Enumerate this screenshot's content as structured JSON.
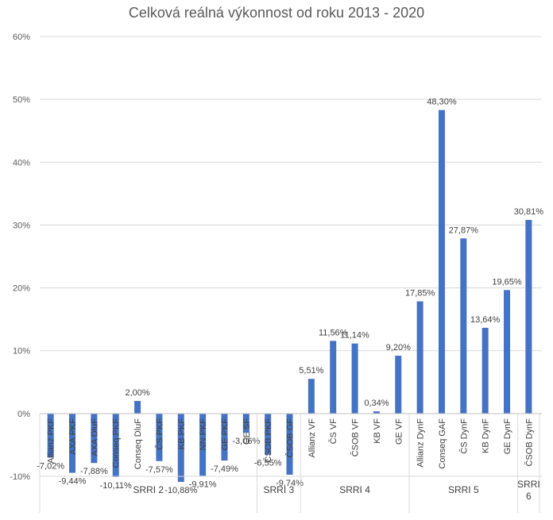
{
  "chart_data": {
    "type": "bar",
    "title": "Celková reálná výkonnost od roku 2013 - 2020",
    "xlabel": "",
    "ylabel": "",
    "ylim": [
      -10,
      60
    ],
    "y_ticks": [
      -10,
      0,
      10,
      20,
      30,
      40,
      50,
      60
    ],
    "y_tick_labels": [
      "-10%",
      "0%",
      "10%",
      "20%",
      "30%",
      "40%",
      "50%",
      "60%"
    ],
    "grid": true,
    "legend": "none",
    "bar_color": "#4472C4",
    "categories": [
      "Allianz PKF",
      "AXA PKF",
      "AXA DluF",
      "Conseq PKF",
      "Conseq DluF",
      "ČS PKF",
      "KB PKF",
      "NN PKF",
      "GE PKF",
      "GE SF",
      "ČSOB PKF",
      "ČSOB GF",
      "Allianz VF",
      "ČS VF",
      "ČSOB VF",
      "KB VF",
      "GE VF",
      "Allianz DynF",
      "Conseq GAF",
      "ČS DynF",
      "KB DynF",
      "GE DynF",
      "ČSOB DynF"
    ],
    "values": [
      -7.02,
      -9.44,
      -7.88,
      -10.11,
      2.0,
      -7.57,
      -10.88,
      -9.91,
      -7.49,
      -3.06,
      -6.55,
      -9.74,
      5.51,
      11.56,
      11.14,
      0.34,
      9.2,
      17.85,
      48.3,
      27.87,
      13.64,
      19.65,
      30.81
    ],
    "data_labels": [
      "-7,02%",
      "-9,44%",
      "-7,88%",
      "-10,11%",
      "2,00%",
      "-7,57%",
      "-10,88%",
      "-9,91%",
      "-7,49%",
      "-3,06%",
      "-6,55%",
      "-9,74%",
      "5,51%",
      "11,56%",
      "11,14%",
      "0,34%",
      "9,20%",
      "17,85%",
      "48,30%",
      "27,87%",
      "13,64%",
      "19,65%",
      "30,81%"
    ],
    "groups": [
      {
        "label": "SRRI 2",
        "count": 10
      },
      {
        "label": "SRRI 3",
        "count": 2
      },
      {
        "label": "SRRI 4",
        "count": 5
      },
      {
        "label": "SRRI 5",
        "count": 5
      },
      {
        "label": "SRRI 6",
        "count": 1
      }
    ]
  }
}
